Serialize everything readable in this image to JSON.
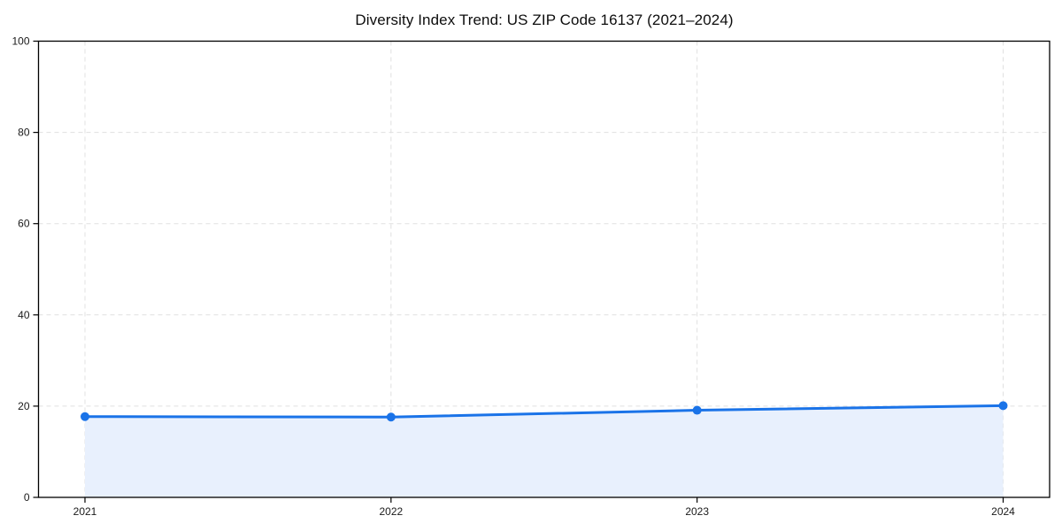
{
  "chart": {
    "title": "Diversity Index Trend: US ZIP Code 16137 (2021–2024)"
  },
  "chart_data": {
    "type": "line",
    "x": [
      2021,
      2022,
      2023,
      2024
    ],
    "xticklabels": [
      "2021",
      "2022",
      "2023",
      "2024"
    ],
    "series": [
      {
        "name": "Diversity Index",
        "values": [
          17.7,
          17.6,
          19.1,
          20.1
        ]
      }
    ],
    "title": "Diversity Index Trend: US ZIP Code 16137 (2021–2024)",
    "xlabel": "",
    "ylabel": "",
    "ylim": [
      0,
      100
    ],
    "yticks": [
      0,
      20,
      40,
      60,
      80,
      100
    ],
    "grid": true,
    "grid_style": "dashed",
    "legend_position": "none",
    "area_fill": true,
    "marker": "circle",
    "colors": {
      "line": "#1a73e8",
      "marker": "#1a73e8",
      "area": "#e8f0fd",
      "grid": "#e0e0e0",
      "spine": "#000000",
      "tick_text": "#1a1a1a",
      "background": "#ffffff"
    }
  }
}
